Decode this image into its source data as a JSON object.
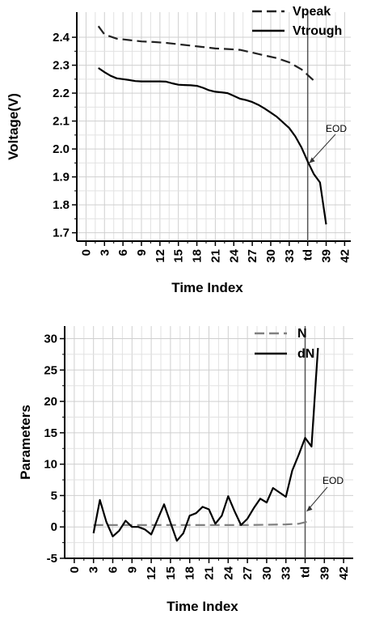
{
  "chart_data": [
    {
      "type": "line",
      "xlabel": "Time Index",
      "ylabel": "Voltage(V)",
      "xlim": [
        -1.5,
        43
      ],
      "ylim": [
        1.67,
        2.49
      ],
      "x_ticks": [
        {
          "value": 0,
          "label": "0"
        },
        {
          "value": 3,
          "label": "3"
        },
        {
          "value": 6,
          "label": "6"
        },
        {
          "value": 9,
          "label": "9"
        },
        {
          "value": 12,
          "label": "12"
        },
        {
          "value": 15,
          "label": "15"
        },
        {
          "value": 18,
          "label": "18"
        },
        {
          "value": 21,
          "label": "21"
        },
        {
          "value": 24,
          "label": "24"
        },
        {
          "value": 27,
          "label": "27"
        },
        {
          "value": 30,
          "label": "30"
        },
        {
          "value": 33,
          "label": "33"
        },
        {
          "value": 36,
          "label": "td"
        },
        {
          "value": 39,
          "label": "39"
        },
        {
          "value": 42,
          "label": "42"
        }
      ],
      "y_ticks": [
        {
          "value": 1.7,
          "label": "1.7"
        },
        {
          "value": 1.8,
          "label": "1.8"
        },
        {
          "value": 1.9,
          "label": "1.9"
        },
        {
          "value": 2.0,
          "label": "2.0"
        },
        {
          "value": 2.1,
          "label": "2.1"
        },
        {
          "value": 2.2,
          "label": "2.2"
        },
        {
          "value": 2.3,
          "label": "2.3"
        },
        {
          "value": 2.4,
          "label": "2.4"
        }
      ],
      "grid": true,
      "legend_position": "top-right",
      "series": [
        {
          "name": "Vpeak",
          "style": "dashed",
          "color": "#222222",
          "x": [
            2,
            3,
            5,
            7,
            9,
            11,
            13,
            15,
            17,
            19,
            21,
            23,
            25,
            27,
            29,
            31,
            33,
            35,
            37
          ],
          "y": [
            2.44,
            2.41,
            2.395,
            2.39,
            2.385,
            2.383,
            2.38,
            2.375,
            2.37,
            2.365,
            2.36,
            2.358,
            2.355,
            2.345,
            2.335,
            2.325,
            2.31,
            2.285,
            2.245
          ]
        },
        {
          "name": "Vtrough",
          "style": "solid",
          "color": "#000000",
          "x": [
            2,
            3,
            4,
            5,
            6,
            7,
            8,
            9,
            10,
            11,
            12,
            13,
            14,
            15,
            16,
            17,
            18,
            19,
            20,
            21,
            22,
            23,
            24,
            25,
            26,
            27,
            28,
            29,
            30,
            31,
            32,
            33,
            34,
            35,
            36,
            37,
            38,
            39
          ],
          "y": [
            2.29,
            2.275,
            2.262,
            2.253,
            2.25,
            2.247,
            2.243,
            2.242,
            2.242,
            2.242,
            2.242,
            2.241,
            2.235,
            2.23,
            2.229,
            2.228,
            2.226,
            2.219,
            2.21,
            2.205,
            2.203,
            2.2,
            2.19,
            2.18,
            2.175,
            2.168,
            2.158,
            2.145,
            2.13,
            2.115,
            2.095,
            2.075,
            2.045,
            2.005,
            1.955,
            1.91,
            1.88,
            1.73
          ]
        }
      ],
      "vline": {
        "x": 36
      },
      "annotation": {
        "text": "EOD",
        "arrow_to": [
          36,
          1.95
        ]
      }
    },
    {
      "type": "line",
      "xlabel": "Time Index",
      "ylabel": "Parameters",
      "xlim": [
        -1.5,
        43.5
      ],
      "ylim": [
        -5,
        32
      ],
      "x_ticks": [
        {
          "value": 0,
          "label": "0"
        },
        {
          "value": 3,
          "label": "3"
        },
        {
          "value": 6,
          "label": "6"
        },
        {
          "value": 9,
          "label": "9"
        },
        {
          "value": 12,
          "label": "12"
        },
        {
          "value": 15,
          "label": "15"
        },
        {
          "value": 18,
          "label": "18"
        },
        {
          "value": 21,
          "label": "21"
        },
        {
          "value": 24,
          "label": "24"
        },
        {
          "value": 27,
          "label": "27"
        },
        {
          "value": 30,
          "label": "30"
        },
        {
          "value": 33,
          "label": "33"
        },
        {
          "value": 36,
          "label": "td"
        },
        {
          "value": 39,
          "label": "39"
        },
        {
          "value": 42,
          "label": "42"
        }
      ],
      "y_ticks": [
        {
          "value": -5,
          "label": "-5"
        },
        {
          "value": 0,
          "label": "0"
        },
        {
          "value": 5,
          "label": "5"
        },
        {
          "value": 10,
          "label": "10"
        },
        {
          "value": 15,
          "label": "15"
        },
        {
          "value": 20,
          "label": "20"
        },
        {
          "value": 25,
          "label": "25"
        },
        {
          "value": 30,
          "label": "30"
        }
      ],
      "grid": true,
      "legend_position": "top-right",
      "series": [
        {
          "name": "N",
          "style": "dashed",
          "color": "#808080",
          "x": [
            3,
            6,
            9,
            12,
            15,
            18,
            21,
            24,
            27,
            30,
            33,
            35,
            37
          ],
          "y": [
            0.3,
            0.3,
            0.3,
            0.3,
            0.3,
            0.3,
            0.3,
            0.3,
            0.3,
            0.35,
            0.4,
            0.5,
            1.0
          ]
        },
        {
          "name": "dN",
          "style": "solid",
          "color": "#000000",
          "x": [
            3,
            4,
            5,
            6,
            7,
            8,
            9,
            10,
            11,
            12,
            13,
            14,
            15,
            16,
            17,
            18,
            19,
            20,
            21,
            22,
            23,
            24,
            25,
            26,
            27,
            28,
            29,
            30,
            31,
            32,
            33,
            34,
            35,
            36,
            37,
            38
          ],
          "y": [
            -1.0,
            4.3,
            0.8,
            -1.5,
            -0.6,
            1.0,
            0.0,
            0.0,
            -0.4,
            -1.2,
            1.2,
            3.6,
            0.7,
            -2.2,
            -1.0,
            1.8,
            2.2,
            3.2,
            2.8,
            0.5,
            1.8,
            4.9,
            2.5,
            0.3,
            1.3,
            3.0,
            4.5,
            3.9,
            6.2,
            5.5,
            4.8,
            9.0,
            11.5,
            14.2,
            12.8,
            28.5
          ]
        }
      ],
      "vline": {
        "x": 36
      },
      "annotation": {
        "text": "EOD",
        "arrow_to": [
          36,
          2.5
        ]
      }
    }
  ]
}
